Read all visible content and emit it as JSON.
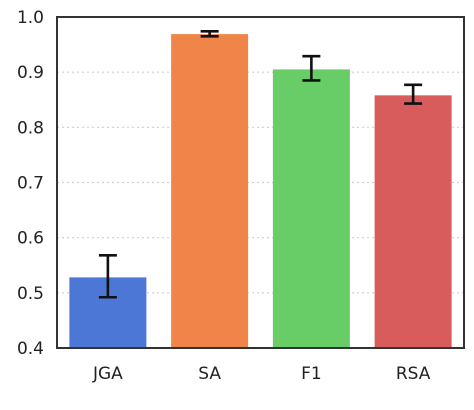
{
  "chart_data": {
    "type": "bar",
    "categories": [
      "JGA",
      "SA",
      "F1",
      "RSA"
    ],
    "values": [
      0.528,
      0.969,
      0.905,
      0.858
    ],
    "errors": [
      [
        0.492,
        0.568
      ],
      [
        0.965,
        0.974
      ],
      [
        0.885,
        0.929
      ],
      [
        0.843,
        0.877
      ]
    ],
    "colors": [
      "#4c77d6",
      "#ef8548",
      "#69cd67",
      "#d85c5c"
    ],
    "ylim": [
      0.4,
      1.0
    ],
    "yticks": [
      "0.4",
      "0.5",
      "0.6",
      "0.7",
      "0.8",
      "0.9",
      "1.0"
    ],
    "grid": true,
    "title": "",
    "xlabel": "",
    "ylabel": ""
  }
}
